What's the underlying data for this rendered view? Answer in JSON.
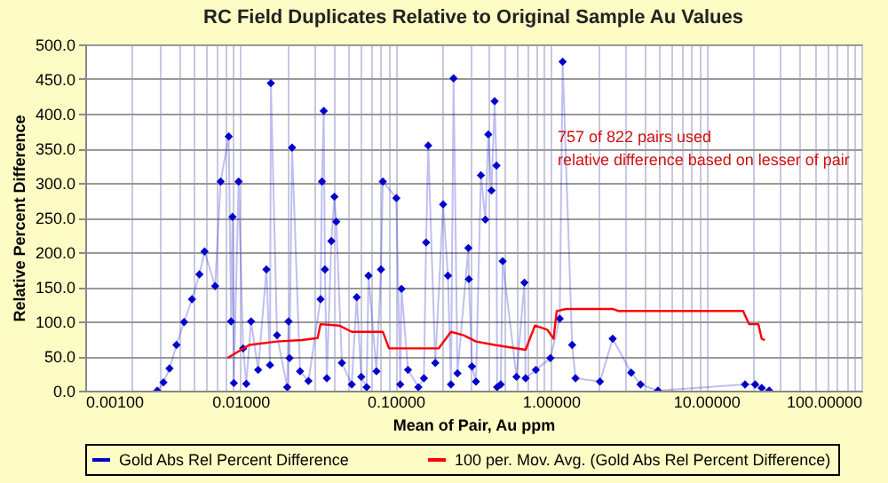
{
  "chart_data": {
    "type": "line",
    "title": "RC Field Duplicates Relative to Original Sample Au Values",
    "xlabel": "Mean of Pair, Au ppm",
    "ylabel": "Relative Percent Difference",
    "annotations": [
      "757 of 822 pairs used\nrelative difference based on lesser of pair"
    ],
    "log": "x",
    "grid": true,
    "legend": "bottom",
    "line_style": "solid",
    "xlim": [
      0.001,
      100
    ],
    "ylim": [
      0,
      500
    ],
    "xticks": [
      {
        "value": 0.001,
        "label": "0.00100"
      },
      {
        "value": 0.002,
        "label": null
      },
      {
        "value": 0.003,
        "label": null
      },
      {
        "value": 0.004,
        "label": null
      },
      {
        "value": 0.005,
        "label": null
      },
      {
        "value": 0.006,
        "label": null
      },
      {
        "value": 0.007,
        "label": null
      },
      {
        "value": 0.008,
        "label": null
      },
      {
        "value": 0.009,
        "label": null
      },
      {
        "value": 0.01,
        "label": "0.01000"
      },
      {
        "value": 0.02,
        "label": null
      },
      {
        "value": 0.03,
        "label": null
      },
      {
        "value": 0.04,
        "label": null
      },
      {
        "value": 0.05,
        "label": null
      },
      {
        "value": 0.06,
        "label": null
      },
      {
        "value": 0.07,
        "label": null
      },
      {
        "value": 0.08,
        "label": null
      },
      {
        "value": 0.09,
        "label": null
      },
      {
        "value": 0.1,
        "label": "0.10000"
      },
      {
        "value": 0.2,
        "label": null
      },
      {
        "value": 0.3,
        "label": null
      },
      {
        "value": 0.4,
        "label": null
      },
      {
        "value": 0.5,
        "label": null
      },
      {
        "value": 0.6,
        "label": null
      },
      {
        "value": 0.7,
        "label": null
      },
      {
        "value": 0.8,
        "label": null
      },
      {
        "value": 0.9,
        "label": null
      },
      {
        "value": 1,
        "label": "1.00000"
      },
      {
        "value": 2,
        "label": null
      },
      {
        "value": 3,
        "label": null
      },
      {
        "value": 4,
        "label": null
      },
      {
        "value": 5,
        "label": null
      },
      {
        "value": 6,
        "label": null
      },
      {
        "value": 7,
        "label": null
      },
      {
        "value": 8,
        "label": null
      },
      {
        "value": 9,
        "label": null
      },
      {
        "value": 10,
        "label": "10.00000"
      },
      {
        "value": 20,
        "label": null
      },
      {
        "value": 30,
        "label": null
      },
      {
        "value": 40,
        "label": null
      },
      {
        "value": 50,
        "label": null
      },
      {
        "value": 60,
        "label": null
      },
      {
        "value": 70,
        "label": null
      },
      {
        "value": 80,
        "label": null
      },
      {
        "value": 90,
        "label": null
      },
      {
        "value": 100,
        "label": "100.00000"
      }
    ],
    "yticks": [
      {
        "value": 0,
        "label": "0.0"
      },
      {
        "value": 50,
        "label": "50.0"
      },
      {
        "value": 100,
        "label": "100.0"
      },
      {
        "value": 150,
        "label": "150.0"
      },
      {
        "value": 200,
        "label": "200.0"
      },
      {
        "value": 250,
        "label": "250.0"
      },
      {
        "value": 300,
        "label": "300.0"
      },
      {
        "value": 350,
        "label": "350.0"
      },
      {
        "value": 400,
        "label": "400.0"
      },
      {
        "value": 450,
        "label": "450.0"
      },
      {
        "value": 500,
        "label": "500.0"
      }
    ],
    "series": [
      {
        "name": "Gold Abs Rel Percent Difference",
        "color": "#0000cc",
        "marker": "diamond",
        "x": [
          0.00291,
          0.00319,
          0.00349,
          0.00387,
          0.00433,
          0.00487,
          0.00544,
          0.00587,
          0.00687,
          0.00745,
          0.0084,
          0.0087,
          0.00888,
          0.00906,
          0.00973,
          0.0104,
          0.0109,
          0.0117,
          0.013,
          0.0147,
          0.0155,
          0.0157,
          0.0172,
          0.02,
          0.0204,
          0.0207,
          0.0215,
          0.0242,
          0.0274,
          0.0328,
          0.0335,
          0.0344,
          0.035,
          0.036,
          0.0385,
          0.0403,
          0.0414,
          0.045,
          0.0521,
          0.0561,
          0.06,
          0.065,
          0.0668,
          0.0752,
          0.0804,
          0.0826,
          0.101,
          0.107,
          0.109,
          0.12,
          0.14,
          0.152,
          0.157,
          0.162,
          0.18,
          0.202,
          0.217,
          0.227,
          0.236,
          0.25,
          0.294,
          0.296,
          0.31,
          0.329,
          0.354,
          0.378,
          0.395,
          0.414,
          0.434,
          0.446,
          0.45,
          0.475,
          0.489,
          0.6,
          0.675,
          0.687,
          0.8,
          0.993,
          1.14,
          1.19,
          1.37,
          1.44,
          2.07,
          2.5,
          3.29,
          3.78,
          4.89,
          17.8,
          20.7,
          22.8,
          25.5
        ],
        "values": [
          0,
          12,
          32,
          66,
          99,
          132,
          168,
          201,
          151,
          302,
          367,
          100,
          251,
          11,
          302,
          61,
          10,
          100,
          30,
          175,
          37,
          444,
          80,
          5,
          100,
          47,
          351,
          28,
          14,
          132,
          302,
          404,
          175,
          18,
          216,
          280,
          244,
          40,
          9,
          135,
          20,
          5,
          166,
          28,
          175,
          302,
          278,
          9,
          147,
          30,
          5,
          18,
          214,
          354,
          40,
          269,
          166,
          9,
          451,
          25,
          206,
          161,
          35,
          13,
          311,
          247,
          370,
          289,
          418,
          325,
          5,
          9,
          187,
          20,
          156,
          18,
          30,
          47,
          104,
          475,
          66,
          18,
          13,
          75,
          26,
          9,
          0,
          9,
          9,
          4,
          0
        ]
      },
      {
        "name": "100 per. Mov. Avg. (Gold Abs Rel Percent Difference)",
        "color": "#ff0000",
        "marker": "none",
        "x": [
          0.00824,
          0.0114,
          0.0172,
          0.0249,
          0.0314,
          0.0328,
          0.0433,
          0.0521,
          0.0826,
          0.0906,
          0.131,
          0.189,
          0.227,
          0.274,
          0.329,
          0.434,
          0.687,
          0.789,
          0.948,
          1.04,
          1.09,
          1.25,
          2.5,
          2.73,
          17.3,
          18.9,
          21.7,
          22.8,
          23.9
        ],
        "values": [
          47,
          66,
          71,
          73,
          76,
          96,
          94,
          85,
          85,
          61,
          61,
          61,
          85,
          80,
          71,
          66,
          59,
          94,
          88,
          75,
          115,
          118,
          118,
          115,
          115,
          96,
          96,
          75,
          73
        ]
      }
    ]
  }
}
